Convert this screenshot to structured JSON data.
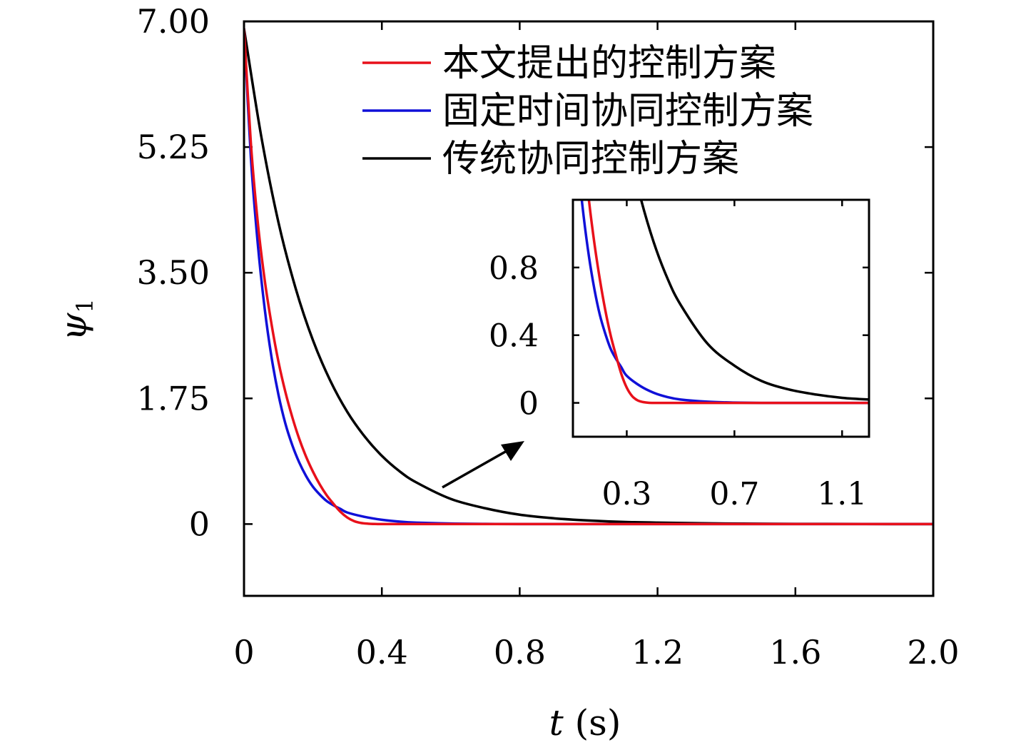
{
  "chart_data": {
    "type": "line",
    "xlabel": {
      "symbol": "t",
      "unit": "(s)"
    },
    "ylabel": {
      "symbol": "ψ",
      "subscript": "1"
    },
    "xlim": [
      0,
      2.0
    ],
    "ylim": [
      -1.0,
      7.0
    ],
    "x_ticks": [
      "0",
      "0.4",
      "0.8",
      "1.2",
      "1.6",
      "2.0"
    ],
    "x_tick_values": [
      0,
      0.4,
      0.8,
      1.2,
      1.6,
      2.0
    ],
    "y_ticks": [
      "0",
      "1.75",
      "3.50",
      "5.25",
      "7.00"
    ],
    "y_tick_values": [
      0,
      1.75,
      3.5,
      5.25,
      7.0
    ],
    "grid": false,
    "legend_position": "top-right",
    "series": [
      {
        "name": "本文提出的控制方案",
        "color": "#e8101a",
        "x": [
          0,
          0.02,
          0.04,
          0.06,
          0.08,
          0.1,
          0.12,
          0.14,
          0.16,
          0.18,
          0.2,
          0.22,
          0.24,
          0.26,
          0.28,
          0.3,
          0.32,
          0.34,
          0.36,
          0.38,
          0.4,
          0.45,
          0.5,
          0.6,
          0.8,
          1.0,
          1.5,
          2.0
        ],
        "y": [
          6.9,
          5.3,
          4.2,
          3.4,
          2.78,
          2.26,
          1.84,
          1.49,
          1.19,
          0.94,
          0.73,
          0.55,
          0.4,
          0.28,
          0.17,
          0.09,
          0.04,
          0.015,
          0.005,
          0.001,
          0.0,
          0.0,
          0.0,
          0.0,
          0.0,
          0.0,
          0.0,
          0.0
        ]
      },
      {
        "name": "固定时间协同控制方案",
        "color": "#1010d8",
        "x": [
          0,
          0.02,
          0.04,
          0.06,
          0.08,
          0.1,
          0.12,
          0.14,
          0.16,
          0.18,
          0.2,
          0.22,
          0.24,
          0.26,
          0.28,
          0.3,
          0.35,
          0.4,
          0.45,
          0.5,
          0.6,
          0.7,
          0.8,
          1.0,
          1.5,
          2.0
        ],
        "y": [
          6.9,
          5.1,
          3.9,
          3.0,
          2.32,
          1.8,
          1.4,
          1.1,
          0.86,
          0.67,
          0.52,
          0.41,
          0.32,
          0.26,
          0.21,
          0.16,
          0.1,
          0.06,
          0.035,
          0.02,
          0.007,
          0.002,
          0.0,
          0.0,
          0.0,
          0.0
        ]
      },
      {
        "name": "传统协同控制方案",
        "color": "#000000",
        "x": [
          0,
          0.05,
          0.1,
          0.15,
          0.2,
          0.25,
          0.3,
          0.35,
          0.4,
          0.45,
          0.5,
          0.6,
          0.7,
          0.8,
          0.9,
          1.0,
          1.1,
          1.2,
          1.4,
          1.6,
          1.8,
          2.0
        ],
        "y": [
          6.9,
          5.4,
          4.2,
          3.28,
          2.56,
          2.0,
          1.56,
          1.22,
          0.95,
          0.74,
          0.58,
          0.35,
          0.22,
          0.13,
          0.08,
          0.05,
          0.03,
          0.02,
          0.007,
          0.003,
          0.001,
          0.0
        ]
      }
    ],
    "inset": {
      "xlim": [
        0.1,
        1.2
      ],
      "ylim": [
        -0.2,
        1.2
      ],
      "x_ticks": [
        "0.3",
        "0.7",
        "1.1"
      ],
      "x_tick_values": [
        0.3,
        0.7,
        1.1
      ],
      "y_ticks": [
        "0",
        "0.4",
        "0.8"
      ],
      "y_tick_values": [
        0,
        0.4,
        0.8
      ]
    }
  }
}
